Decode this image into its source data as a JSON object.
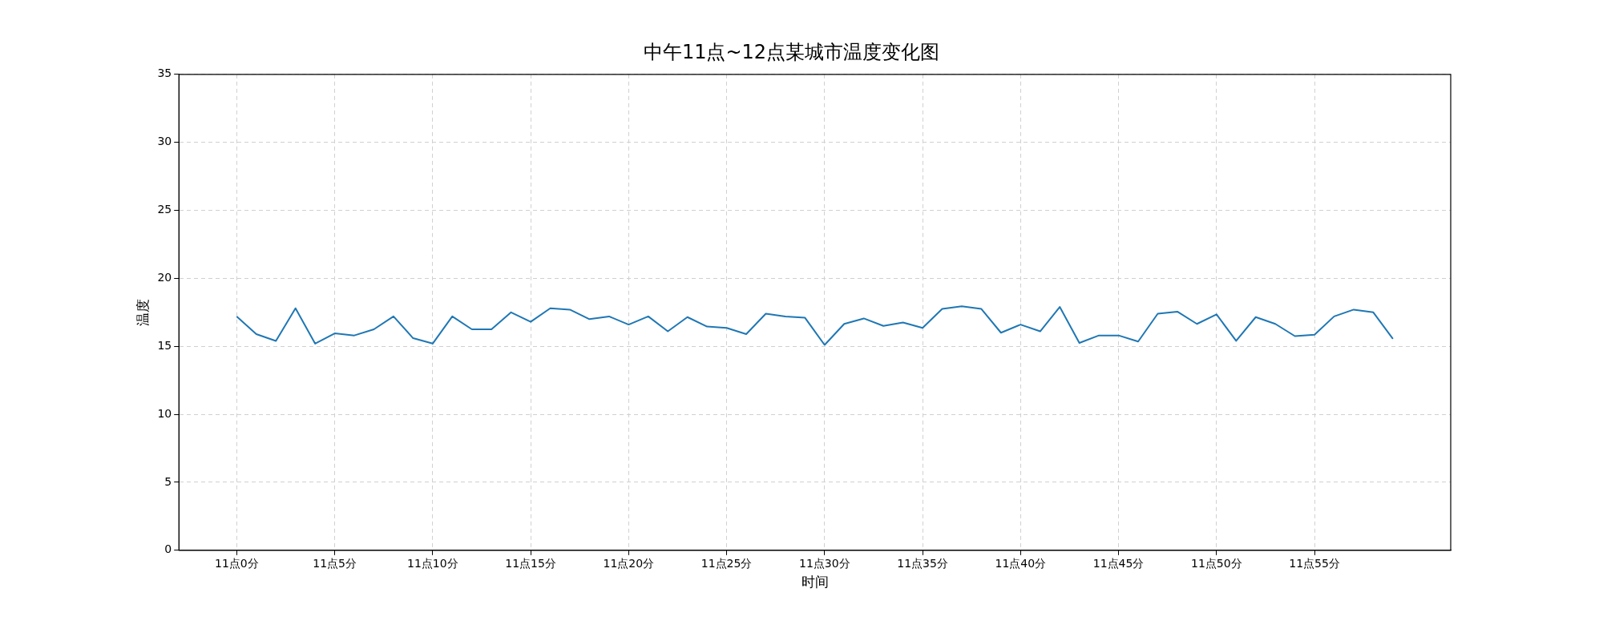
{
  "chart_data": {
    "type": "line",
    "title": "中午11点~12点某城市温度变化图",
    "xlabel": "时间",
    "ylabel": "温度",
    "categories": [
      "11点0分",
      null,
      null,
      null,
      null,
      "11点5分",
      null,
      null,
      null,
      null,
      "11点10分",
      null,
      null,
      null,
      null,
      "11点15分",
      null,
      null,
      null,
      null,
      "11点20分",
      null,
      null,
      null,
      null,
      "11点25分",
      null,
      null,
      null,
      null,
      "11点30分",
      null,
      null,
      null,
      null,
      "11点35分",
      null,
      null,
      null,
      null,
      "11点40分",
      null,
      null,
      null,
      null,
      "11点45分",
      null,
      null,
      null,
      null,
      "11点50分",
      null,
      null,
      null,
      null,
      "11点55分",
      null,
      null,
      null,
      null
    ],
    "series": [
      {
        "color": "#1f77b4",
        "values": [
          17.2,
          15.9,
          15.4,
          17.8,
          15.2,
          15.95,
          15.8,
          16.25,
          17.2,
          15.6,
          15.2,
          17.2,
          16.25,
          16.25,
          17.5,
          16.8,
          17.8,
          17.7,
          17.0,
          17.2,
          16.6,
          17.2,
          16.1,
          17.15,
          16.45,
          16.35,
          15.9,
          17.4,
          17.2,
          17.1,
          15.1,
          16.65,
          17.05,
          16.5,
          16.75,
          16.35,
          17.75,
          17.95,
          17.75,
          16.0,
          16.6,
          16.1,
          17.9,
          15.25,
          15.8,
          15.8,
          15.35,
          17.4,
          17.55,
          16.65,
          17.35,
          15.4,
          17.15,
          16.65,
          15.75,
          15.85,
          17.2,
          17.7,
          17.5,
          15.55
        ]
      }
    ],
    "ylim": [
      0,
      35
    ],
    "yticks": [
      0,
      5,
      10,
      15,
      20,
      25,
      30,
      35
    ],
    "grid": true,
    "marker": "none",
    "line_style": "solid"
  }
}
